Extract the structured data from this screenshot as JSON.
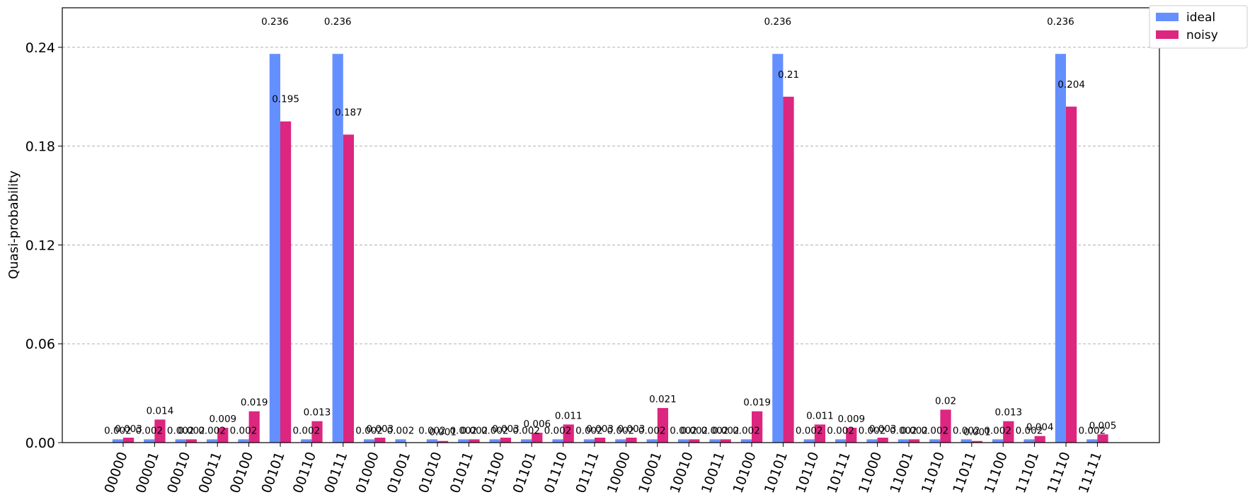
{
  "chart_data": {
    "type": "bar",
    "title": "",
    "xlabel": "",
    "ylabel": "Quasi-probability",
    "ylim": [
      0,
      0.264
    ],
    "yticks": [
      "0.00",
      "0.06",
      "0.12",
      "0.18",
      "0.24"
    ],
    "ytick_values": [
      0,
      0.06,
      0.12,
      0.18,
      0.24
    ],
    "grid": "horizontal dashed",
    "legend_position": "outside top-right",
    "categories": [
      "00000",
      "00001",
      "00010",
      "00011",
      "00100",
      "00101",
      "00110",
      "00111",
      "01000",
      "01001",
      "01010",
      "01011",
      "01100",
      "01101",
      "01110",
      "01111",
      "10000",
      "10001",
      "10010",
      "10011",
      "10100",
      "10101",
      "10110",
      "10111",
      "11000",
      "11001",
      "11010",
      "11011",
      "11100",
      "11101",
      "11110",
      "11111"
    ],
    "series": [
      {
        "name": "ideal",
        "color": "#648fff",
        "values": [
          0.002,
          0.002,
          0.002,
          0.002,
          0.002,
          0.236,
          0.002,
          0.236,
          0.002,
          0.002,
          0.002,
          0.002,
          0.002,
          0.002,
          0.002,
          0.002,
          0.002,
          0.002,
          0.002,
          0.002,
          0.002,
          0.236,
          0.002,
          0.002,
          0.002,
          0.002,
          0.002,
          0.002,
          0.002,
          0.002,
          0.236,
          0.002
        ]
      },
      {
        "name": "noisy",
        "color": "#dc267f",
        "values": [
          0.003,
          0.014,
          0.002,
          0.009,
          0.019,
          0.195,
          0.013,
          0.187,
          0.003,
          null,
          0.001,
          0.002,
          0.003,
          0.006,
          0.011,
          0.003,
          0.003,
          0.021,
          0.002,
          0.002,
          0.019,
          0.21,
          0.011,
          0.009,
          0.003,
          0.002,
          0.02,
          0.001,
          0.013,
          0.004,
          0.204,
          0.005
        ]
      }
    ]
  }
}
